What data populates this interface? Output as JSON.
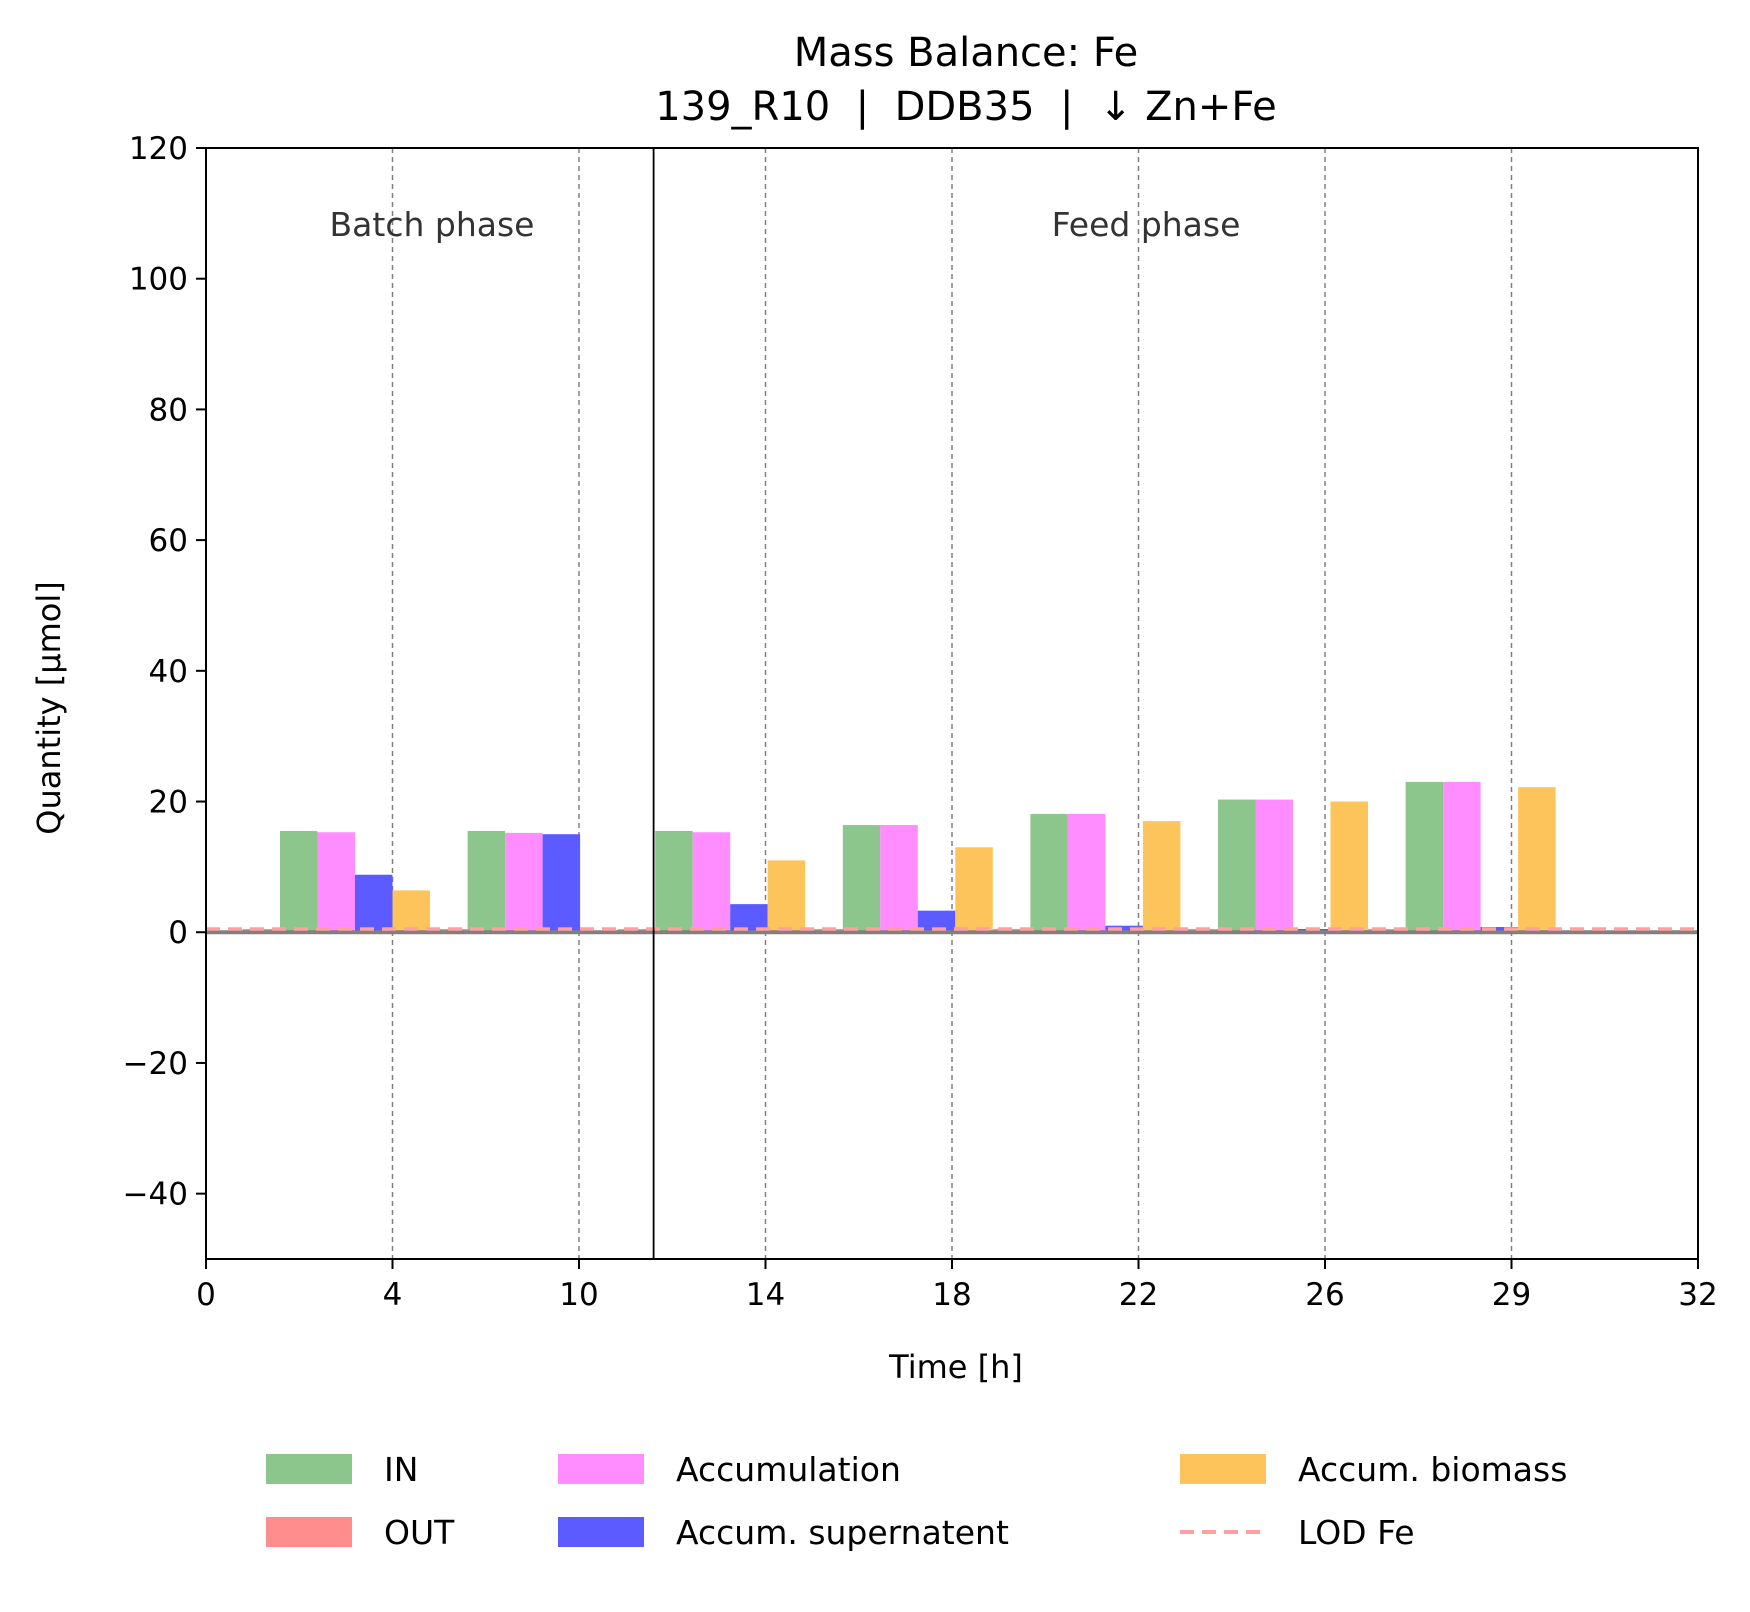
{
  "title_line1": "Mass Balance: Fe",
  "title_line2": "139_R10  |  DDB35  |  ↓ Zn+Fe",
  "phases": {
    "batch": "Batch phase",
    "feed": "Feed phase"
  },
  "chart_data": {
    "type": "bar",
    "xlabel": "Time [h]",
    "ylabel": "Quantity [µmol]",
    "ylim": [
      -50,
      120
    ],
    "yticks": [
      -40,
      -20,
      0,
      20,
      40,
      60,
      80,
      100,
      120
    ],
    "xticks": [
      "0",
      "4",
      "10",
      "14",
      "18",
      "22",
      "26",
      "29",
      "32"
    ],
    "batch_feed_boundary_tick_index": 2.4,
    "grid": "vertical dashed at each interior x tick",
    "intervals": [
      {
        "IN": 15.5,
        "OUT": 0.5,
        "Accumulation": 15.3,
        "Accum. supernatent": 8.8,
        "Accum. biomass": 6.4
      },
      {
        "IN": 15.5,
        "OUT": 0.5,
        "Accumulation": 15.2,
        "Accum. supernatent": 15.0,
        "Accum. biomass": null
      },
      {
        "IN": 15.5,
        "OUT": 0.5,
        "Accumulation": 15.3,
        "Accum. supernatent": 4.3,
        "Accum. biomass": 11.0
      },
      {
        "IN": 16.4,
        "OUT": 0.5,
        "Accumulation": 16.4,
        "Accum. supernatent": 3.3,
        "Accum. biomass": 13.0
      },
      {
        "IN": 18.1,
        "OUT": 0.5,
        "Accumulation": 18.1,
        "Accum. supernatent": 1.0,
        "Accum. biomass": 17.0
      },
      {
        "IN": 20.3,
        "OUT": 0.5,
        "Accumulation": 20.3,
        "Accum. supernatent": 0.5,
        "Accum. biomass": 20.0
      },
      {
        "IN": 23.0,
        "OUT": 0.5,
        "Accumulation": 23.0,
        "Accum. supernatent": 0.8,
        "Accum. biomass": 22.2
      }
    ],
    "series": [
      {
        "name": "IN",
        "color": "#8dc68c"
      },
      {
        "name": "OUT",
        "color": "#ff8d8d"
      },
      {
        "name": "Accumulation",
        "color": "#ff8dff"
      },
      {
        "name": "Accum. supernatent",
        "color": "#5b5bff"
      },
      {
        "name": "Accum. biomass",
        "color": "#fdc45c"
      }
    ],
    "lod": {
      "name": "LOD Fe",
      "value": 0.5,
      "color": "#ffa0a0"
    },
    "legend": [
      "IN",
      "OUT",
      "Accumulation",
      "Accum. supernatent",
      "Accum. biomass",
      "LOD Fe"
    ],
    "legend_placement": "below"
  }
}
